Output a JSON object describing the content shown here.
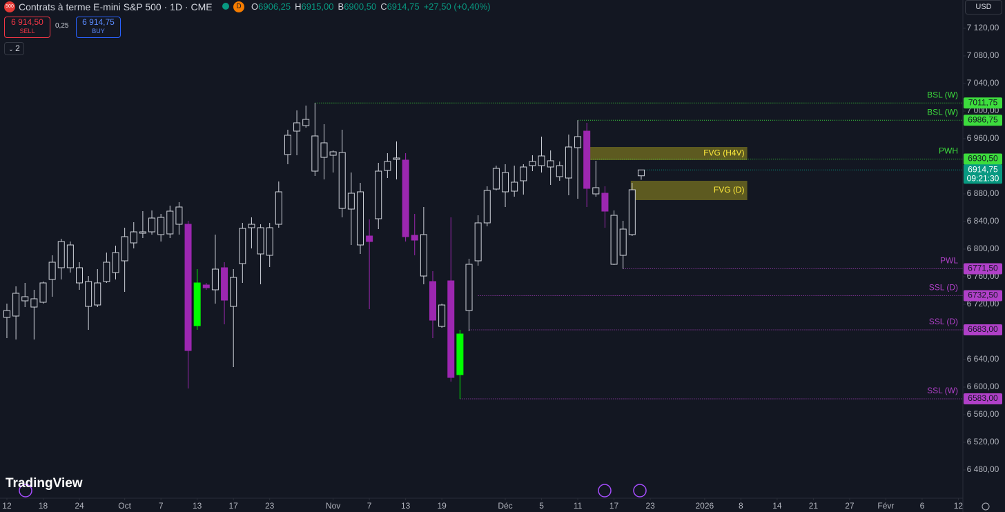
{
  "header": {
    "badge": "500",
    "title": "Contrats à terme E-mini S&P 500 · 1D · CME",
    "flag": "D",
    "ohlc": [
      {
        "key": "O",
        "value": "6906,25"
      },
      {
        "key": "H",
        "value": "6915,00"
      },
      {
        "key": "B",
        "value": "6900,50"
      },
      {
        "key": "C",
        "value": "6914,75"
      }
    ],
    "change": "+27,50 (+0,40%)",
    "sell_price": "6 914,50",
    "sell": "SELL",
    "spread": "0,25",
    "buy_price": "6 914,75",
    "buy": "BUY",
    "indicators": "2",
    "currency": "USD",
    "logo": "TradingView"
  },
  "chart_data": {
    "type": "candlestick",
    "color": "#d1d4dc",
    "background": "#131722",
    "open": [
      6701,
      6703,
      6731,
      6716,
      6723,
      6756,
      6773,
      6806,
      6773,
      6753,
      6719,
      6753,
      6766,
      6783,
      6809,
      6823,
      6825,
      6846,
      6822,
      6861,
      6836,
      6689,
      6748,
      6741,
      6773,
      6717,
      6779,
      6831,
      6831,
      6791,
      6836,
      6937,
      6971,
      6979,
      6964,
      6933,
      6941,
      6940,
      6858,
      6883,
      6819,
      6844,
      6914,
      6930,
      6929,
      6820,
      6821,
      6753,
      6719,
      6754,
      6618,
      6711,
      6783,
      6838,
      6887,
      6911,
      6884,
      6899,
      6921,
      6921,
      6928,
      6921,
      6903,
      6947,
      6971,
      6889,
      6881,
      6849,
      6791,
      6821,
      6906.25
    ],
    "high": [
      6721,
      6746,
      6751,
      6741,
      6753,
      6791,
      6815,
      6811,
      6781,
      6761,
      6771,
      6795,
      6805,
      6831,
      6839,
      6855,
      6856,
      6851,
      6863,
      6868,
      6841,
      6771,
      6751,
      6821,
      6781,
      6771,
      6838,
      6846,
      6836,
      6838,
      6898,
      6973,
      7001,
      7008,
      7011.75,
      6981,
      6943,
      6973,
      6911,
      6896,
      6843,
      6925,
      6939,
      6956,
      6939,
      6851,
      6861,
      6768,
      6721,
      6846,
      6683,
      6786,
      6849,
      6891,
      6921,
      6923,
      6921,
      6923,
      6936,
      6963,
      6943,
      6927,
      6966,
      6986.75,
      6983,
      6928,
      6891,
      6856,
      6841,
      6896,
      6915
    ],
    "low": [
      6671,
      6669,
      6716,
      6669,
      6721,
      6731,
      6756,
      6766,
      6741,
      6683,
      6716,
      6751,
      6756,
      6738,
      6801,
      6816,
      6821,
      6811,
      6816,
      6821,
      6598,
      6683,
      6741,
      6721,
      6691,
      6629,
      6751,
      6801,
      6749,
      6774,
      6831,
      6923,
      6936,
      6976,
      6906,
      6901,
      6911,
      6846,
      6806,
      6793,
      6713,
      6829,
      6903,
      6901,
      6811,
      6791,
      6749,
      6671,
      6686,
      6608,
      6583,
      6681,
      6776,
      6833,
      6885,
      6861,
      6876,
      6879,
      6913,
      6911,
      6893,
      6899,
      6878,
      6873,
      6861,
      6876,
      6831,
      6777,
      6771.5,
      6819,
      6900.5
    ],
    "close": [
      6711,
      6736,
      6725,
      6728,
      6751,
      6781,
      6811,
      6773,
      6751,
      6717,
      6751,
      6781,
      6795,
      6818,
      6825,
      6825,
      6845,
      6821,
      6855,
      6836,
      6653,
      6751,
      6744,
      6771,
      6726,
      6759,
      6830,
      6836,
      6793,
      6831,
      6883,
      6965,
      6983,
      6988,
      6913,
      6954,
      6936,
      6859,
      6881,
      6806,
      6811,
      6913,
      6927,
      6932,
      6818,
      6813,
      6761,
      6697,
      6688,
      6614,
      6677,
      6778,
      6838,
      6885,
      6917,
      6883,
      6897,
      6919,
      6927,
      6935,
      6919,
      6905,
      6948,
      6963,
      6888,
      6880,
      6855,
      6778,
      6829,
      6886,
      6914.75
    ],
    "fills": [
      "#131722",
      "#131722",
      "#131722",
      "#131722",
      "#131722",
      "#131722",
      "#131722",
      "#131722",
      "#131722",
      "#131722",
      "#131722",
      "#131722",
      "#131722",
      "#131722",
      "#131722",
      "#131722",
      "#131722",
      "#131722",
      "#131722",
      "#131722",
      "#9c27b0",
      "#00ff00",
      "#9c27b0",
      "#131722",
      "#9c27b0",
      "#131722",
      "#131722",
      "#131722",
      "#131722",
      "#131722",
      "#131722",
      "#131722",
      "#131722",
      "#131722",
      "#131722",
      "#131722",
      "#131722",
      "#131722",
      "#131722",
      "#131722",
      "#9c27b0",
      "#131722",
      "#131722",
      "#131722",
      "#9c27b0",
      "#9c27b0",
      "#131722",
      "#9c27b0",
      "#131722",
      "#9c27b0",
      "#00ff00",
      "#131722",
      "#131722",
      "#131722",
      "#131722",
      "#131722",
      "#131722",
      "#131722",
      "#131722",
      "#131722",
      "#131722",
      "#131722",
      "#131722",
      "#131722",
      "#9c27b0",
      "#131722",
      "#9c27b0",
      "#131722",
      "#131722",
      "#131722",
      "#131722"
    ],
    "ylim": [
      6439,
      7161
    ],
    "yticks": [
      {
        "value": 7120,
        "label": "7 120,00"
      },
      {
        "value": 7080,
        "label": "7 080,00"
      },
      {
        "value": 7040,
        "label": "7 040,00"
      },
      {
        "value": 7000,
        "label": "7 000,00"
      },
      {
        "value": 6960,
        "label": "6 960,00"
      },
      {
        "value": 6880,
        "label": "6 880,00"
      },
      {
        "value": 6840,
        "label": "6 840,00"
      },
      {
        "value": 6800,
        "label": "6 800,00"
      },
      {
        "value": 6760,
        "label": "6 760,00"
      },
      {
        "value": 6720,
        "label": "6 720,00"
      },
      {
        "value": 6640,
        "label": "6 640,00"
      },
      {
        "value": 6600,
        "label": "6 600,00"
      },
      {
        "value": 6560,
        "label": "6 560,00"
      },
      {
        "value": 6520,
        "label": "6 520,00"
      },
      {
        "value": 6480,
        "label": "6 480,00"
      }
    ],
    "xlim": [
      -0.76,
      105.5
    ],
    "xticks": [
      {
        "value": 0,
        "label": "12"
      },
      {
        "value": 4,
        "label": "18"
      },
      {
        "value": 8,
        "label": "24"
      },
      {
        "value": 13,
        "label": "Oct"
      },
      {
        "value": 17,
        "label": "7"
      },
      {
        "value": 21,
        "label": "13"
      },
      {
        "value": 25,
        "label": "17"
      },
      {
        "value": 29,
        "label": "23"
      },
      {
        "value": 36,
        "label": "Nov"
      },
      {
        "value": 40,
        "label": "7"
      },
      {
        "value": 44,
        "label": "13"
      },
      {
        "value": 48,
        "label": "19"
      },
      {
        "value": 55,
        "label": "Déc"
      },
      {
        "value": 59,
        "label": "5"
      },
      {
        "value": 63,
        "label": "11"
      },
      {
        "value": 67,
        "label": "17"
      },
      {
        "value": 71,
        "label": "23"
      },
      {
        "value": 77,
        "label": "2026"
      },
      {
        "value": 81,
        "label": "8"
      },
      {
        "value": 85,
        "label": "14"
      },
      {
        "value": 89,
        "label": "21"
      },
      {
        "value": 93,
        "label": "27"
      },
      {
        "value": 97,
        "label": "Févr"
      },
      {
        "value": 101,
        "label": "6"
      },
      {
        "value": 105,
        "label": "12"
      }
    ],
    "levels": [
      {
        "name": "BSL (W)",
        "value": 7011.75,
        "value_label": "7011,75",
        "start": 34,
        "color": "#3ddc3d"
      },
      {
        "name": "BSL (W)",
        "value": 6986.75,
        "value_label": "6986,75",
        "start": 63,
        "color": "#3ddc3d"
      },
      {
        "name": "PWH",
        "value": 6930.5,
        "value_label": "6930,50",
        "start": 64,
        "color": "#3ddc3d"
      },
      {
        "name": "PWL",
        "value": 6771.5,
        "value_label": "6771,50",
        "start": 68,
        "color": "#b040c8"
      },
      {
        "name": "SSL (D)",
        "value": 6732.5,
        "value_label": "6732,50",
        "start": 52,
        "color": "#b040c8"
      },
      {
        "name": "SSL (D)",
        "value": 6683,
        "value_label": "6683,00",
        "start": 51,
        "color": "#b040c8"
      },
      {
        "name": "SSL (W)",
        "value": 6583,
        "value_label": "6583,00",
        "start": 50,
        "color": "#b040c8"
      }
    ],
    "zones": [
      {
        "name": "FVG (H4V)",
        "top": 6948,
        "bottom": 6929,
        "start": 64.2,
        "end": 81.7,
        "color": "#6b6620"
      },
      {
        "name": "FVG (D)",
        "top": 6899,
        "bottom": 6871,
        "start": 68.85,
        "end": 81.7,
        "color": "#6b6620"
      }
    ],
    "last": {
      "value": 6914.75,
      "label": "6914,75",
      "countdown": "09:21:30",
      "color": "#089981"
    }
  }
}
